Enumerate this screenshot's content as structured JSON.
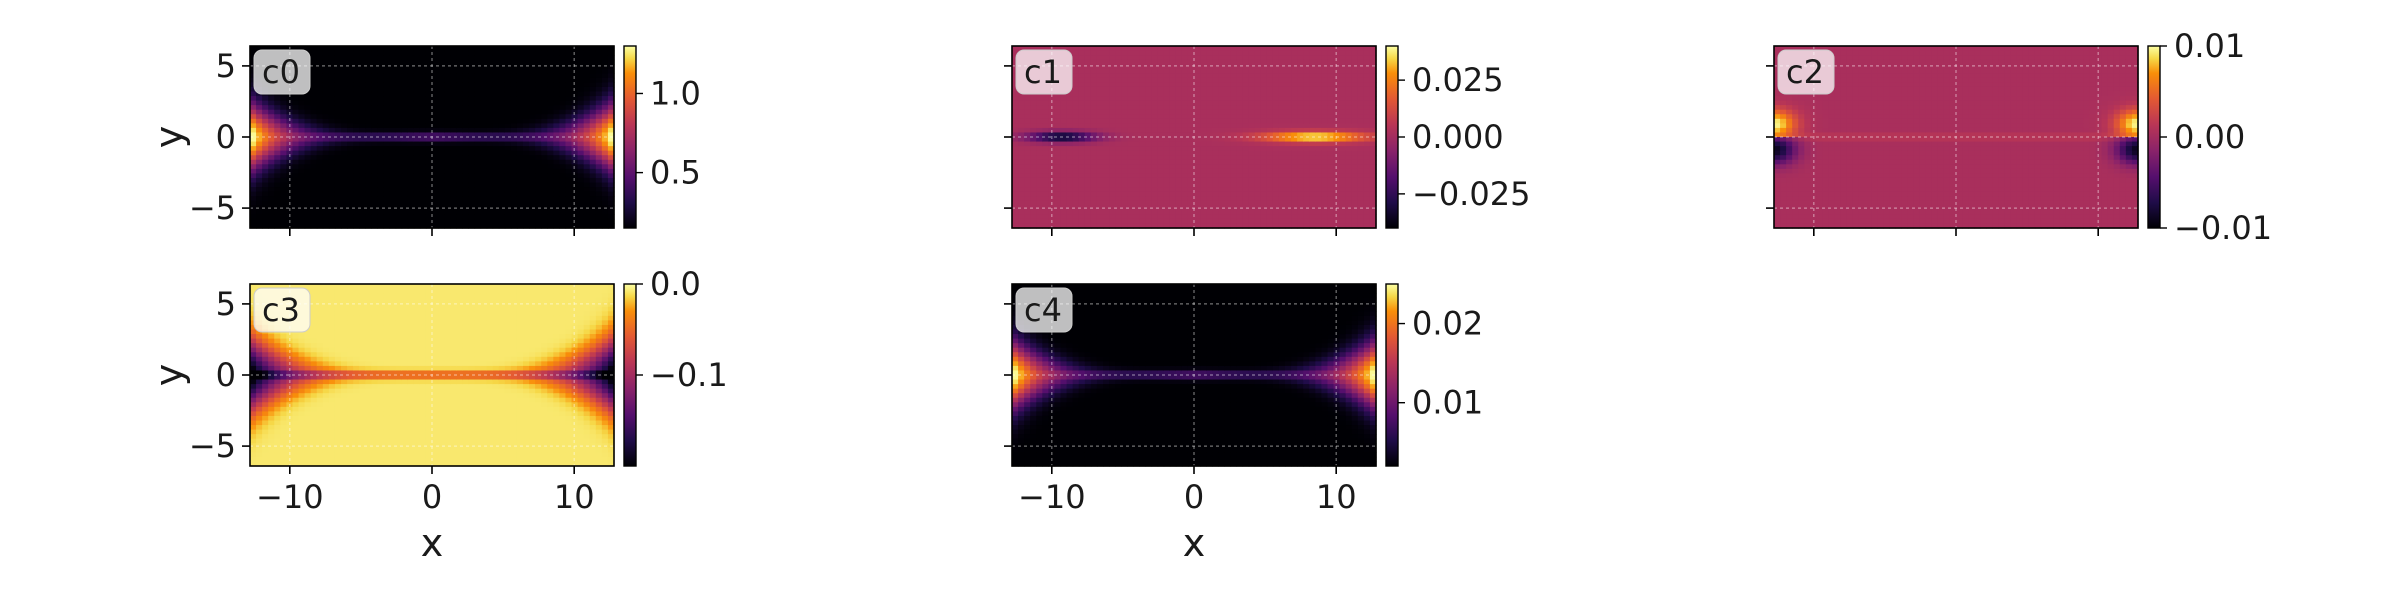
{
  "chart_data": [
    {
      "type": "heatmap",
      "label": "c0",
      "xlabel": "",
      "ylabel": "y",
      "xlim": [
        -12.8,
        12.8
      ],
      "ylim": [
        -6.4,
        6.4
      ],
      "xticks": [
        -10,
        0,
        10
      ],
      "yticks": [
        5,
        0,
        -5
      ],
      "show_xtick_labels": false,
      "show_ytick_labels": true,
      "grid": true,
      "colormap": "inferno",
      "pattern": "wings",
      "colorbar": {
        "min": 0.15,
        "max": 1.3,
        "ticks": [
          {
            "v": 1.0,
            "label": "1.0"
          },
          {
            "v": 0.5,
            "label": "0.5"
          }
        ]
      }
    },
    {
      "type": "heatmap",
      "label": "c1",
      "xlabel": "",
      "ylabel": "",
      "xlim": [
        -12.8,
        12.8
      ],
      "ylim": [
        -6.4,
        6.4
      ],
      "xticks": [
        -10,
        0,
        10
      ],
      "yticks": [
        5,
        0,
        -5
      ],
      "show_xtick_labels": false,
      "show_ytick_labels": false,
      "grid": true,
      "colormap": "inferno",
      "pattern": "antisym-line",
      "colorbar": {
        "min": -0.04,
        "max": 0.04,
        "ticks": [
          {
            "v": 0.025,
            "label": "0.025"
          },
          {
            "v": 0.0,
            "label": "0.000"
          },
          {
            "v": -0.025,
            "label": "−0.025"
          }
        ]
      }
    },
    {
      "type": "heatmap",
      "label": "c2",
      "xlabel": "",
      "ylabel": "",
      "xlim": [
        -12.8,
        12.8
      ],
      "ylim": [
        -6.4,
        6.4
      ],
      "xticks": [
        -10,
        0,
        10
      ],
      "yticks": [
        5,
        0,
        -5
      ],
      "show_xtick_labels": false,
      "show_ytick_labels": false,
      "grid": true,
      "colormap": "inferno",
      "pattern": "dipole",
      "colorbar": {
        "min": -0.01,
        "max": 0.01,
        "ticks": [
          {
            "v": 0.01,
            "label": "0.01"
          },
          {
            "v": 0.0,
            "label": "0.00"
          },
          {
            "v": -0.01,
            "label": "−0.01"
          }
        ]
      }
    },
    {
      "type": "heatmap",
      "label": "c3",
      "xlabel": "x",
      "ylabel": "y",
      "xlim": [
        -12.8,
        12.8
      ],
      "ylim": [
        -6.4,
        6.4
      ],
      "xticks": [
        -10,
        0,
        10
      ],
      "yticks": [
        5,
        0,
        -5
      ],
      "show_xtick_labels": true,
      "show_ytick_labels": true,
      "grid": true,
      "colormap": "inferno",
      "pattern": "inverted-wings",
      "colorbar": {
        "min": -0.2,
        "max": 0.0,
        "ticks": [
          {
            "v": 0.0,
            "label": "0.0"
          },
          {
            "v": -0.1,
            "label": "−0.1"
          }
        ]
      }
    },
    {
      "type": "heatmap",
      "label": "c4",
      "xlabel": "x",
      "ylabel": "",
      "xlim": [
        -12.8,
        12.8
      ],
      "ylim": [
        -6.4,
        6.4
      ],
      "xticks": [
        -10,
        0,
        10
      ],
      "yticks": [
        5,
        0,
        -5
      ],
      "show_xtick_labels": true,
      "show_ytick_labels": false,
      "grid": true,
      "colormap": "inferno",
      "pattern": "wings",
      "colorbar": {
        "min": 0.002,
        "max": 0.025,
        "ticks": [
          {
            "v": 0.02,
            "label": "0.02"
          },
          {
            "v": 0.01,
            "label": "0.01"
          }
        ]
      }
    }
  ]
}
